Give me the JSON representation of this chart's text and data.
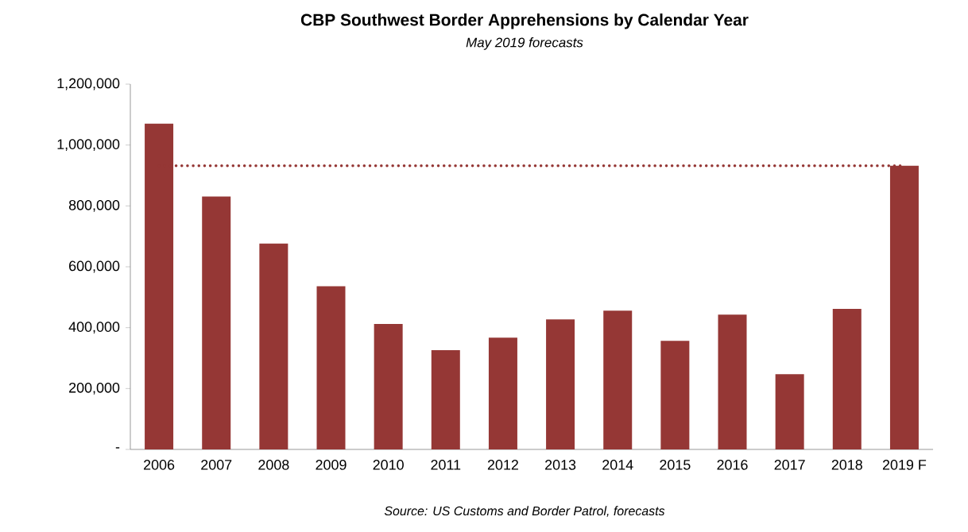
{
  "chart_data": {
    "type": "bar",
    "title": "CBP Southwest Border Apprehensions by Calendar Year",
    "subtitle": "May 2019 forecasts",
    "categories": [
      "2006",
      "2007",
      "2008",
      "2009",
      "2010",
      "2011",
      "2012",
      "2013",
      "2014",
      "2015",
      "2016",
      "2017",
      "2018",
      "2019 F"
    ],
    "values": [
      1070000,
      831000,
      676000,
      536000,
      412000,
      326000,
      367000,
      427000,
      456000,
      357000,
      443000,
      247000,
      462000,
      932000
    ],
    "color": "#953735",
    "ylim": [
      0,
      1200000
    ],
    "yticks": [
      {
        "value": 0,
        "label": "-"
      },
      {
        "value": 200000,
        "label": "200,000"
      },
      {
        "value": 400000,
        "label": "400,000"
      },
      {
        "value": 600000,
        "label": "600,000"
      },
      {
        "value": 800000,
        "label": "800,000"
      },
      {
        "value": 1000000,
        "label": "1,000,000"
      },
      {
        "value": 1200000,
        "label": "1,200,000"
      }
    ],
    "ref_lines": [
      {
        "axis": "y",
        "value": 932000,
        "color": "#953735",
        "line_style": "dotted"
      }
    ],
    "annotations": [
      "Source: US Customs and Border Patrol, forecasts"
    ],
    "grid": false
  }
}
